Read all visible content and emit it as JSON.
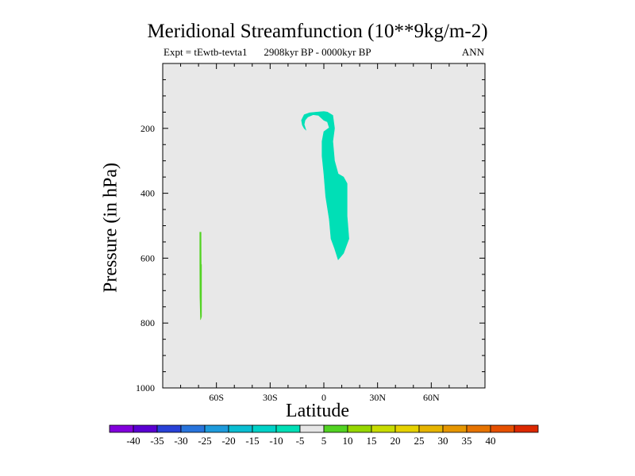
{
  "chart_data": {
    "type": "contour",
    "title": "Meridional Streamfunction (10**9kg/m-2)",
    "experiment_label": "Expt = tEwtb-tevta1",
    "period_label": "2908kyr BP - 0000kyr BP",
    "season_label": "ANN",
    "xlabel": "Latitude",
    "ylabel": "Pressure (in hPa)",
    "xlim": [
      -90,
      90
    ],
    "ylim": [
      1000,
      0
    ],
    "xticks": [
      {
        "value": -60,
        "label": "60S"
      },
      {
        "value": -30,
        "label": "30S"
      },
      {
        "value": 0,
        "label": "0"
      },
      {
        "value": 30,
        "label": "30N"
      },
      {
        "value": 60,
        "label": "60N"
      }
    ],
    "yticks": [
      {
        "value": 200,
        "label": "200"
      },
      {
        "value": 400,
        "label": "400"
      },
      {
        "value": 600,
        "label": "600"
      },
      {
        "value": 800,
        "label": "800"
      },
      {
        "value": 1000,
        "label": "1000"
      }
    ],
    "background_color": "#e8e8e8",
    "regions": [
      {
        "name": "negative-cell",
        "level": "-10 to -5",
        "color": "#00dfb6",
        "polygon": [
          [
            -11,
            188
          ],
          [
            -10.5,
            175
          ],
          [
            -9,
            165
          ],
          [
            -6,
            158
          ],
          [
            -3,
            160
          ],
          [
            0,
            175
          ],
          [
            2,
            180
          ],
          [
            3,
            198
          ],
          [
            0,
            210
          ],
          [
            -1,
            240
          ],
          [
            -1,
            285
          ],
          [
            0,
            340
          ],
          [
            1,
            410
          ],
          [
            3,
            480
          ],
          [
            4,
            540
          ],
          [
            6,
            570
          ],
          [
            8,
            605
          ],
          [
            11,
            585
          ],
          [
            14,
            540
          ],
          [
            13,
            470
          ],
          [
            13,
            370
          ],
          [
            11,
            350
          ],
          [
            8,
            340
          ],
          [
            6,
            300
          ],
          [
            5,
            240
          ],
          [
            6,
            200
          ],
          [
            5,
            160
          ],
          [
            2,
            150
          ],
          [
            0,
            148
          ],
          [
            -4,
            150
          ],
          [
            -8,
            152
          ],
          [
            -11,
            158
          ],
          [
            -12.5,
            175
          ],
          [
            -12,
            190
          ],
          [
            -11,
            200
          ],
          [
            -10,
            205
          ]
        ]
      },
      {
        "name": "positive-cell",
        "level": "5 to 10",
        "color": "#52d322",
        "polygon": [
          [
            -69.3,
            520
          ],
          [
            -68.6,
            520
          ],
          [
            -68.5,
            620
          ],
          [
            -68.3,
            620
          ],
          [
            -68.3,
            780
          ],
          [
            -68.9,
            790
          ],
          [
            -69.2,
            720
          ],
          [
            -69.3,
            620
          ]
        ]
      }
    ],
    "colorbar": {
      "colors": [
        "#8200dc",
        "#5a00d2",
        "#2841d7",
        "#2874dc",
        "#1e9bdc",
        "#0abed2",
        "#00d2c8",
        "#00dfb6",
        "#e6e6e6",
        "#52d322",
        "#96d700",
        "#c8dc00",
        "#e6d200",
        "#e6b400",
        "#e69600",
        "#e67300",
        "#e65000",
        "#dc2800"
      ],
      "labels": [
        "-40",
        "-35",
        "-30",
        "-25",
        "-20",
        "-15",
        "-10",
        "-5",
        "5",
        "10",
        "15",
        "20",
        "25",
        "30",
        "35",
        "40"
      ]
    }
  }
}
